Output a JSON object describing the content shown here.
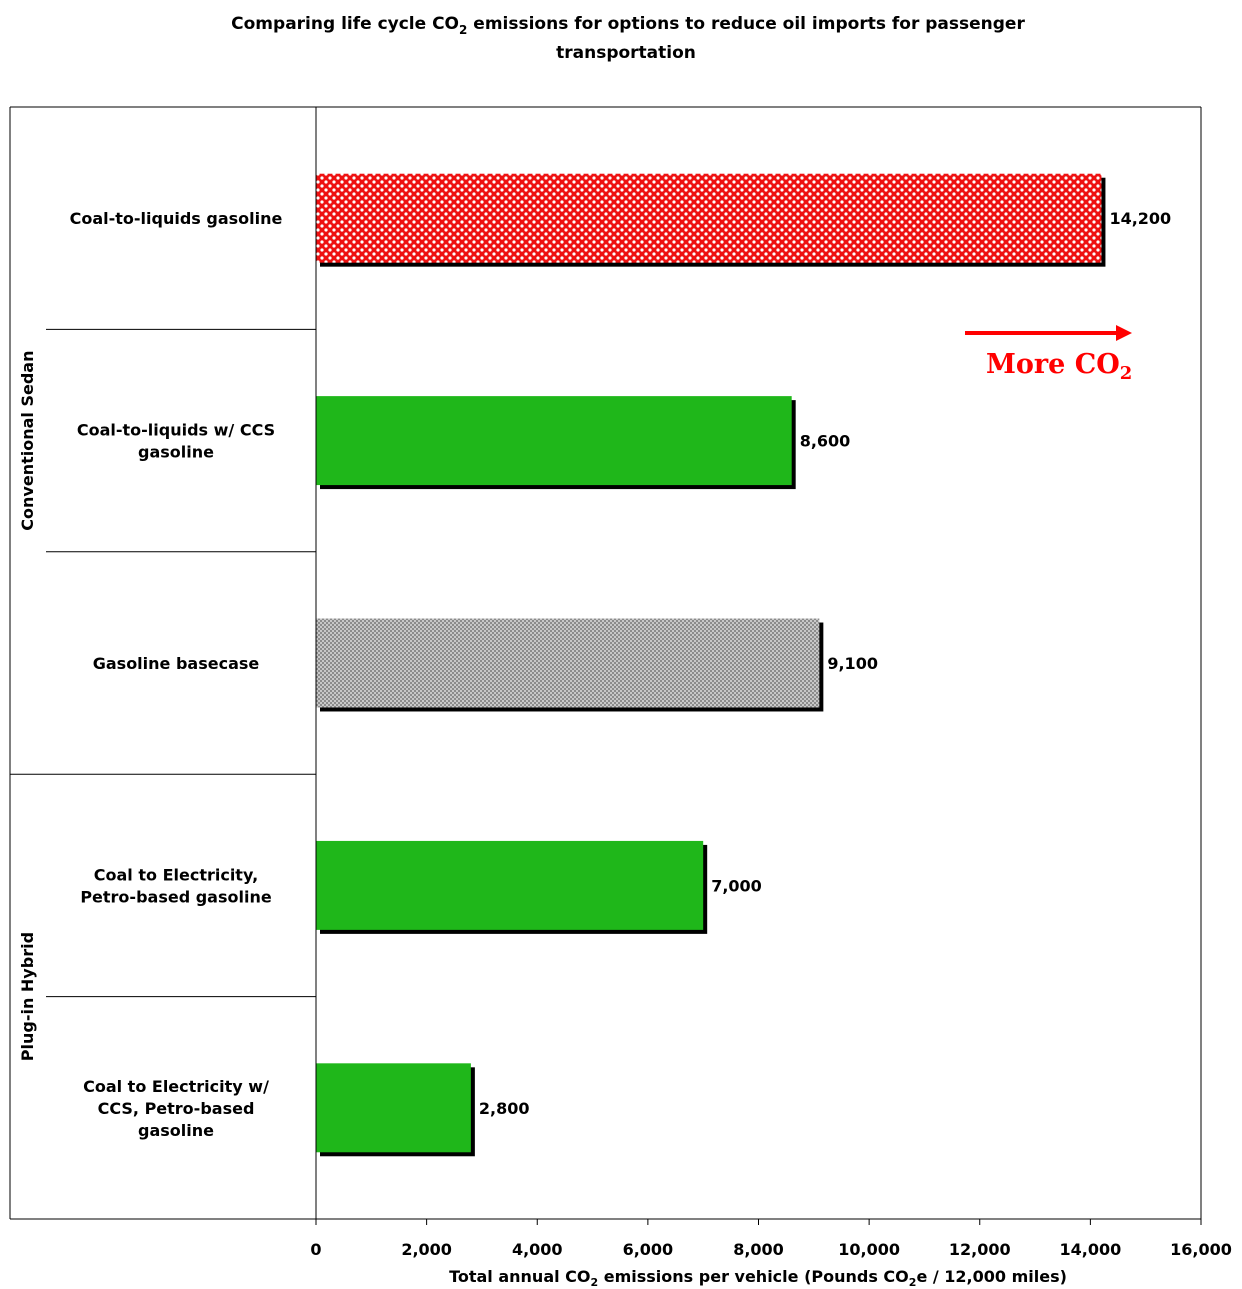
{
  "chart_data": {
    "type": "bar",
    "orientation": "horizontal",
    "title_line1_pre": "Comparing life cycle CO",
    "title_line1_sub": "2",
    "title_line1_post": " emissions for options to reduce oil imports for passenger",
    "title_line2": "transportation",
    "xlabel_pre": "Total annual CO",
    "xlabel_sub1": "2",
    "xlabel_mid": " emissions per vehicle (Pounds CO",
    "xlabel_sub2": "2",
    "xlabel_post": "e / 12,000 miles)",
    "xlim": [
      0,
      16000
    ],
    "xticks": [
      0,
      2000,
      4000,
      6000,
      8000,
      10000,
      12000,
      14000,
      16000
    ],
    "xtick_labels": [
      "0",
      "2,000",
      "4,000",
      "6,000",
      "8,000",
      "10,000",
      "12,000",
      "14,000",
      "16,000"
    ],
    "grid": false,
    "groups": [
      {
        "label": "Conventional Sedan",
        "categories": 3
      },
      {
        "label": "Plug-in Hybrid",
        "categories": 2
      }
    ],
    "bars": [
      {
        "category_lines": [
          "Coal-to-liquids gasoline"
        ],
        "value": 14200,
        "value_label": "14,200",
        "fill": "red-pattern"
      },
      {
        "category_lines": [
          "Coal-to-liquids w/ CCS",
          "gasoline"
        ],
        "value": 8600,
        "value_label": "8,600",
        "fill": "green"
      },
      {
        "category_lines": [
          "Gasoline basecase"
        ],
        "value": 9100,
        "value_label": "9,100",
        "fill": "gray-pattern"
      },
      {
        "category_lines": [
          "Coal to Electricity,",
          "Petro-based gasoline"
        ],
        "value": 7000,
        "value_label": "7,000",
        "fill": "green"
      },
      {
        "category_lines": [
          "Coal to Electricity w/",
          "CCS, Petro-based",
          "gasoline"
        ],
        "value": 2800,
        "value_label": "2,800",
        "fill": "green"
      }
    ],
    "annotation": {
      "text_pre": "More CO",
      "text_sub": "2",
      "color": "#ff0000"
    },
    "colors": {
      "green": "#1fb71a",
      "red": "#ee1111",
      "gray": "#a8a8a8",
      "shadow": "#000000"
    }
  }
}
